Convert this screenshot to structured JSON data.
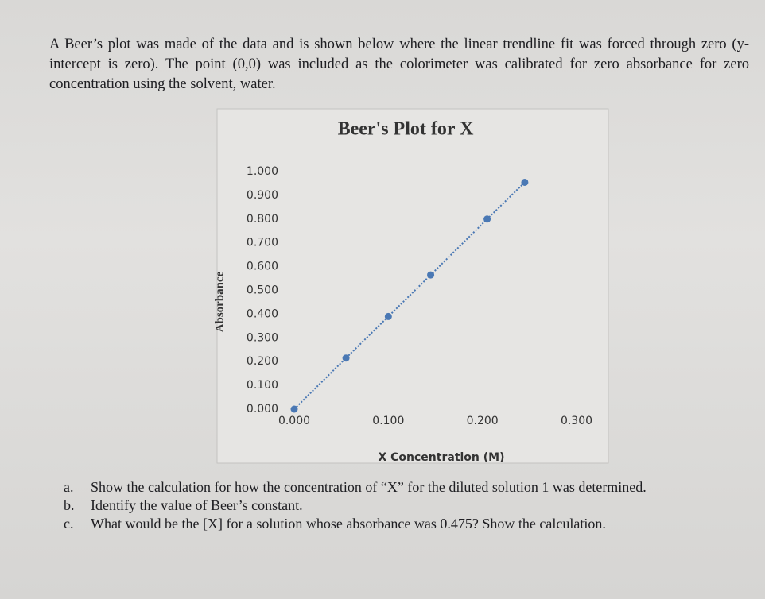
{
  "paragraph": "A Beer’s plot was made of the data and is shown below where the linear trendline fit was forced through zero (y-intercept is zero). The point (0,0) was included as the colorimeter was calibrated for zero absorbance for zero concentration using the solvent, water.",
  "chart_data": {
    "type": "scatter",
    "title": "Beer's Plot for X",
    "x_label": "X Concentration (M)",
    "y_label": "Absorbance",
    "x": [
      0,
      0.055,
      0.1,
      0.145,
      0.205,
      0.245
    ],
    "series": [
      {
        "name": "Absorbance",
        "color": "#4a78b4",
        "values": [
          0,
          0.215,
          0.39,
          0.565,
          0.8,
          0.955
        ]
      }
    ],
    "trendline": "dotted",
    "xlim": [
      0,
      0.3
    ],
    "ylim": [
      0,
      1
    ],
    "xticks": [
      {
        "value": 0,
        "label": "0.000"
      },
      {
        "value": 0.1,
        "label": "0.100"
      },
      {
        "value": 0.2,
        "label": "0.200"
      },
      {
        "value": 0.3,
        "label": "0.300"
      }
    ],
    "yticks": [
      {
        "value": 0,
        "label": "0.000"
      },
      {
        "value": 0.1,
        "label": "0.100"
      },
      {
        "value": 0.2,
        "label": "0.200"
      },
      {
        "value": 0.3,
        "label": "0.300"
      },
      {
        "value": 0.4,
        "label": "0.400"
      },
      {
        "value": 0.5,
        "label": "0.500"
      },
      {
        "value": 0.6,
        "label": "0.600"
      },
      {
        "value": 0.7,
        "label": "0.700"
      },
      {
        "value": 0.8,
        "label": "0.800"
      },
      {
        "value": 0.9,
        "label": "0.900"
      },
      {
        "value": 1,
        "label": "1.000"
      }
    ],
    "grid": false
  },
  "questions": [
    {
      "label": "a.",
      "text": "Show the calculation for how the concentration of “X” for the diluted solution 1 was determined."
    },
    {
      "label": "b.",
      "text": "Identify the value of Beer’s constant."
    },
    {
      "label": "c.",
      "text": "What would be the [X] for a solution whose absorbance was 0.475? Show the calculation."
    }
  ]
}
